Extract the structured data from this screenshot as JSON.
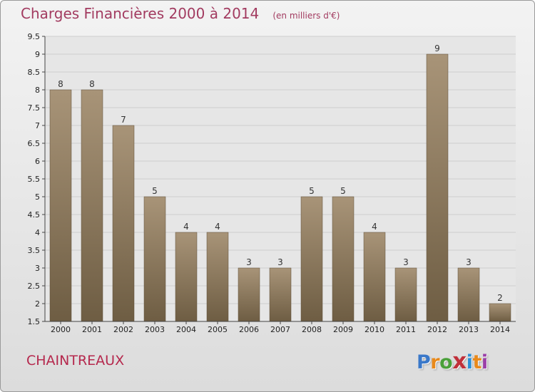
{
  "header": {
    "title": "Charges Financières 2000 à 2014",
    "unit": "(en milliers d'€)"
  },
  "footer": {
    "commune": "CHAINTREAUX",
    "logo": [
      "P",
      "r",
      "o",
      "x",
      "i",
      "t",
      "i"
    ],
    "logo_colors": [
      "#3a78c9",
      "#e8891b",
      "#4aa03a",
      "#c0303a",
      "#2b8fd6",
      "#e8891b",
      "#9b3fa8"
    ]
  },
  "chart_data": {
    "type": "bar",
    "categories": [
      "2000",
      "2001",
      "2002",
      "2003",
      "2004",
      "2005",
      "2006",
      "2007",
      "2008",
      "2009",
      "2010",
      "2011",
      "2012",
      "2013",
      "2014"
    ],
    "values": [
      8,
      8,
      7,
      5,
      4,
      4,
      3,
      3,
      5,
      5,
      4,
      3,
      9,
      3,
      2
    ],
    "data_labels": [
      "8",
      "8",
      "7",
      "5",
      "4",
      "4",
      "3",
      "3",
      "5",
      "5",
      "4",
      "3",
      "9",
      "3",
      "2"
    ],
    "yticks": [
      "1.5",
      "2",
      "2.5",
      "3",
      "3.5",
      "4",
      "4.5",
      "5",
      "5.5",
      "6",
      "6.5",
      "7",
      "7.5",
      "8",
      "8.5",
      "9",
      "9.5"
    ],
    "ylim": [
      1.5,
      9.5
    ],
    "grid": true,
    "bar_color_top": "#a89478",
    "bar_color_bottom": "#6e5d43"
  }
}
